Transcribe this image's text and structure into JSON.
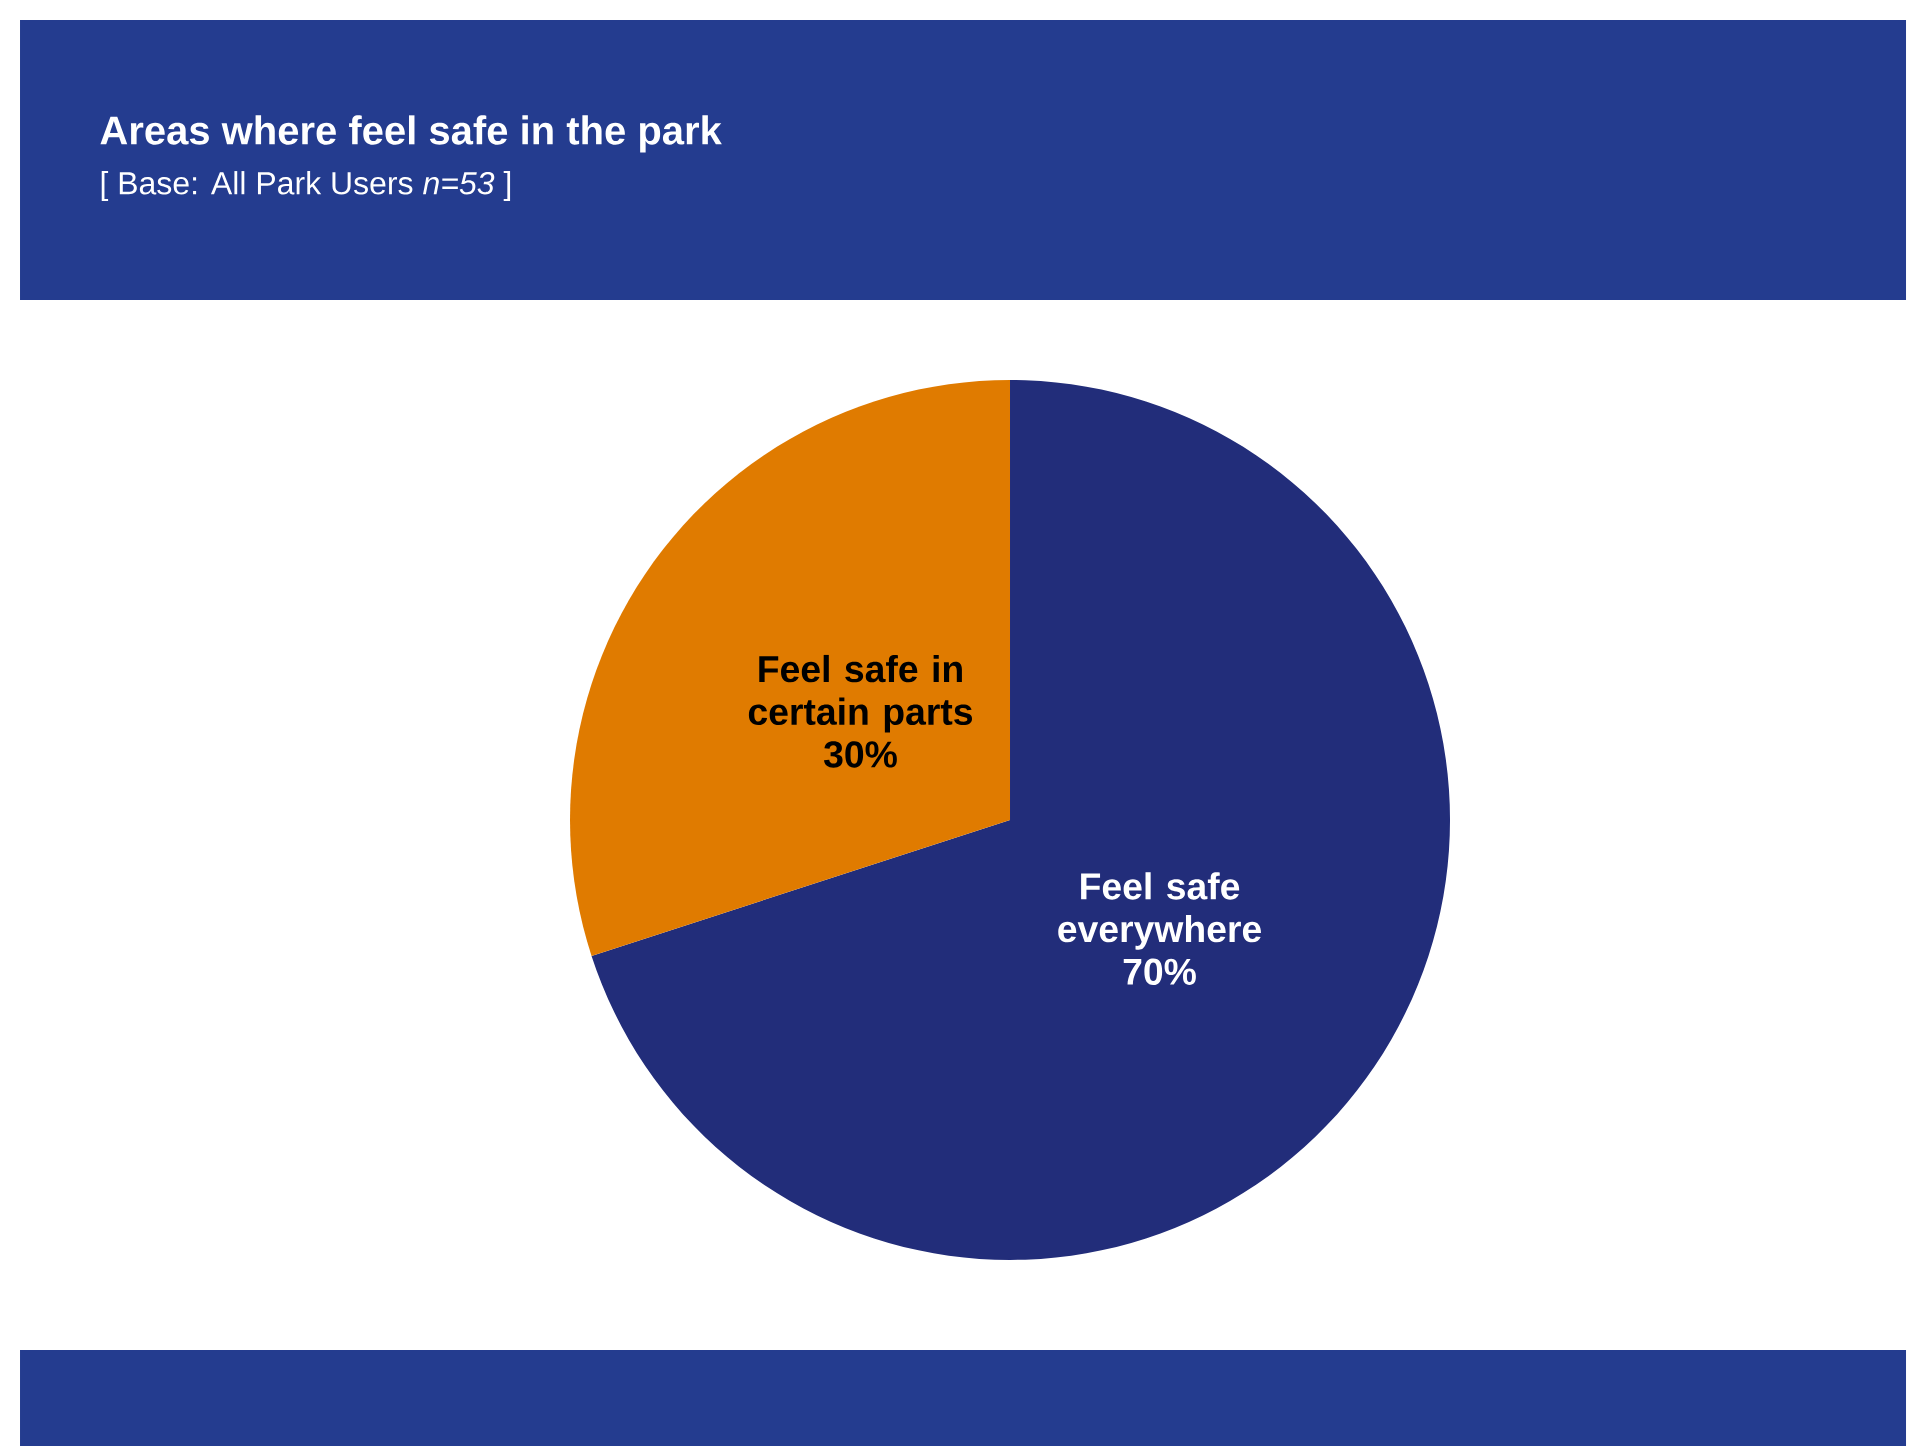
{
  "chart_data": {
    "type": "pie",
    "title": "Areas where feel safe in the park",
    "subtitle": "[ Base:   All Park Users *n=53* ]",
    "categories": [
      "Feel safe everywhere",
      "Feel safe in certain parts"
    ],
    "values": [
      70,
      30
    ],
    "value_labels": [
      "70%",
      "30%"
    ],
    "colors": [
      "#222d7a",
      "#e07b00"
    ]
  }
}
